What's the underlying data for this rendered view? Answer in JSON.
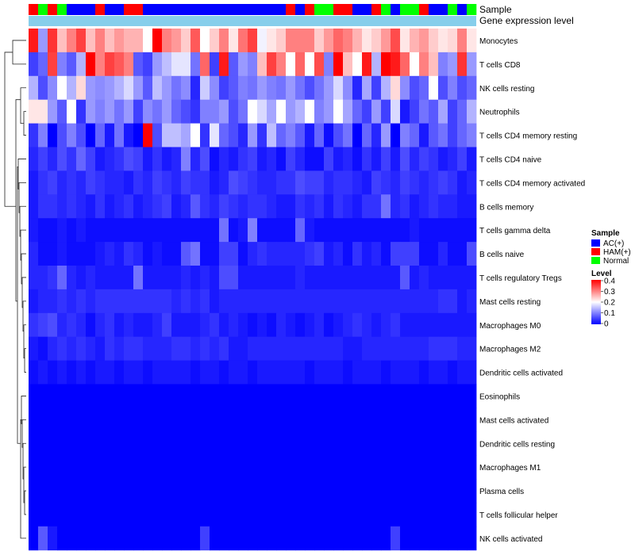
{
  "chart_data": {
    "type": "heatmap",
    "annotation_labels": [
      "Sample",
      "Gene expression level"
    ],
    "sample_annotation": [
      "HAM(+)",
      "Normal",
      "HAM(+)",
      "Normal",
      "AC(+)",
      "AC(+)",
      "AC(+)",
      "HAM(+)",
      "AC(+)",
      "AC(+)",
      "HAM(+)",
      "HAM(+)",
      "AC(+)",
      "AC(+)",
      "AC(+)",
      "AC(+)",
      "AC(+)",
      "AC(+)",
      "AC(+)",
      "AC(+)",
      "AC(+)",
      "AC(+)",
      "AC(+)",
      "AC(+)",
      "AC(+)",
      "AC(+)",
      "AC(+)",
      "HAM(+)",
      "AC(+)",
      "HAM(+)",
      "Normal",
      "Normal",
      "HAM(+)",
      "HAM(+)",
      "AC(+)",
      "AC(+)",
      "HAM(+)",
      "Normal",
      "AC(+)",
      "Normal",
      "Normal",
      "HAM(+)",
      "AC(+)",
      "AC(+)",
      "Normal",
      "AC(+)",
      "Normal"
    ],
    "rows": [
      "Monocytes",
      "T cells CD8",
      "NK cells resting",
      "Neutrophils",
      "T cells CD4 memory resting",
      "T cells CD4 naive",
      "T cells CD4 memory activated",
      "B cells memory",
      "T cells gamma delta",
      "B cells naive",
      "T cells regulatory  Tregs",
      "Mast cells resting",
      "Macrophages M0",
      "Macrophages M2",
      "Dendritic cells activated",
      "Eosinophils",
      "Mast cells activated",
      "Dendritic cells resting",
      "Macrophages M1",
      "Plasma cells",
      "T cells follicular helper",
      "NK cells activated"
    ],
    "values": [
      [
        0.38,
        0.12,
        0.36,
        0.25,
        0.3,
        0.35,
        0.25,
        0.3,
        0.25,
        0.28,
        0.26,
        0.26,
        0.2,
        0.4,
        0.3,
        0.28,
        0.24,
        0.33,
        0.2,
        0.24,
        0.3,
        0.22,
        0.31,
        0.35,
        0.19,
        0.22,
        0.24,
        0.3,
        0.3,
        0.3,
        0.24,
        0.28,
        0.32,
        0.3,
        0.26,
        0.22,
        0.24,
        0.28,
        0.34,
        0.22,
        0.26,
        0.28,
        0.24,
        0.22,
        0.23,
        0.3,
        0.22
      ],
      [
        0.05,
        0.08,
        0.35,
        0.1,
        0.07,
        0.14,
        0.4,
        0.3,
        0.35,
        0.33,
        0.3,
        0.07,
        0.05,
        0.12,
        0.15,
        0.18,
        0.18,
        0.09,
        0.32,
        0.05,
        0.38,
        0.07,
        0.12,
        0.1,
        0.25,
        0.35,
        0.3,
        0.2,
        0.32,
        0.2,
        0.34,
        0.1,
        0.4,
        0.25,
        0.2,
        0.38,
        0.14,
        0.4,
        0.38,
        0.32,
        0.2,
        0.3,
        0.25,
        0.1,
        0.12,
        0.36,
        0.12
      ],
      [
        0.14,
        0.06,
        0.11,
        0.2,
        0.14,
        0.23,
        0.12,
        0.11,
        0.12,
        0.14,
        0.17,
        0.12,
        0.07,
        0.15,
        0.12,
        0.09,
        0.11,
        0.03,
        0.16,
        0.11,
        0.05,
        0.07,
        0.1,
        0.09,
        0.12,
        0.1,
        0.09,
        0.12,
        0.09,
        0.06,
        0.09,
        0.12,
        0.17,
        0.11,
        0.03,
        0.13,
        0.05,
        0.14,
        0.23,
        0.11,
        0.06,
        0.08,
        0.2,
        0.06,
        0.1,
        0.06,
        0.08
      ],
      [
        0.22,
        0.22,
        0.12,
        0.07,
        0.2,
        0.04,
        0.12,
        0.1,
        0.12,
        0.09,
        0.12,
        0.05,
        0.11,
        0.09,
        0.12,
        0.08,
        0.06,
        0.04,
        0.1,
        0.1,
        0.12,
        0.06,
        0.09,
        0.2,
        0.17,
        0.13,
        0.2,
        0.12,
        0.14,
        0.2,
        0.1,
        0.12,
        0.2,
        0.13,
        0.08,
        0.05,
        0.12,
        0.05,
        0.17,
        0.02,
        0.05,
        0.09,
        0.07,
        0.13,
        0.05,
        0.08,
        0.14
      ],
      [
        0.04,
        0.1,
        0.0,
        0.06,
        0.1,
        0.06,
        0.0,
        0.08,
        0.02,
        0.09,
        0.02,
        0.0,
        0.4,
        0.06,
        0.15,
        0.15,
        0.13,
        0.2,
        0.04,
        0.18,
        0.08,
        0.06,
        0.03,
        0.12,
        0.04,
        0.15,
        0.08,
        0.1,
        0.07,
        0.02,
        0.08,
        0.01,
        0.06,
        0.09,
        0.0,
        0.08,
        0.03,
        0.12,
        0.0,
        0.1,
        0.08,
        0.02,
        0.07,
        0.09,
        0.05,
        0.08,
        0.1
      ],
      [
        0.03,
        0.05,
        0.03,
        0.06,
        0.04,
        0.08,
        0.05,
        0.02,
        0.03,
        0.04,
        0.06,
        0.05,
        0.02,
        0.04,
        0.02,
        0.03,
        0.1,
        0.03,
        0.06,
        0.01,
        0.03,
        0.02,
        0.04,
        0.05,
        0.02,
        0.03,
        0.01,
        0.05,
        0.03,
        0.01,
        0.01,
        0.05,
        0.02,
        0.03,
        0.01,
        0.04,
        0.02,
        0.05,
        0.02,
        0.06,
        0.03,
        0.05,
        0.04,
        0.02,
        0.03,
        0.05,
        0.02
      ],
      [
        0.02,
        0.04,
        0.05,
        0.03,
        0.04,
        0.03,
        0.05,
        0.04,
        0.03,
        0.03,
        0.02,
        0.04,
        0.03,
        0.05,
        0.04,
        0.03,
        0.05,
        0.04,
        0.04,
        0.02,
        0.03,
        0.06,
        0.05,
        0.04,
        0.03,
        0.03,
        0.04,
        0.04,
        0.06,
        0.05,
        0.05,
        0.03,
        0.04,
        0.04,
        0.03,
        0.02,
        0.05,
        0.04,
        0.03,
        0.05,
        0.04,
        0.03,
        0.04,
        0.05,
        0.04,
        0.02,
        0.03
      ],
      [
        0.02,
        0.04,
        0.04,
        0.03,
        0.04,
        0.03,
        0.02,
        0.04,
        0.02,
        0.03,
        0.04,
        0.02,
        0.03,
        0.04,
        0.05,
        0.02,
        0.03,
        0.07,
        0.04,
        0.03,
        0.05,
        0.04,
        0.03,
        0.04,
        0.04,
        0.03,
        0.02,
        0.02,
        0.04,
        0.03,
        0.04,
        0.02,
        0.04,
        0.03,
        0.02,
        0.04,
        0.04,
        0.09,
        0.03,
        0.04,
        0.02,
        0.03,
        0.04,
        0.03,
        0.03,
        0.02,
        0.02
      ],
      [
        0.02,
        0.01,
        0.01,
        0.02,
        0.01,
        0.02,
        0.01,
        0.01,
        0.01,
        0.01,
        0.01,
        0.01,
        0.01,
        0.01,
        0.01,
        0.01,
        0.01,
        0.01,
        0.01,
        0.01,
        0.09,
        0.01,
        0.02,
        0.1,
        0.01,
        0.01,
        0.01,
        0.01,
        0.08,
        0.02,
        0.01,
        0.01,
        0.01,
        0.01,
        0.01,
        0.01,
        0.01,
        0.01,
        0.01,
        0.01,
        0.02,
        0.01,
        0.01,
        0.01,
        0.01,
        0.01,
        0.01
      ],
      [
        0.03,
        0.01,
        0.01,
        0.02,
        0.01,
        0.01,
        0.01,
        0.02,
        0.03,
        0.02,
        0.04,
        0.03,
        0.01,
        0.02,
        0.01,
        0.01,
        0.07,
        0.09,
        0.01,
        0.01,
        0.05,
        0.05,
        0.01,
        0.03,
        0.04,
        0.03,
        0.03,
        0.03,
        0.03,
        0.04,
        0.05,
        0.02,
        0.03,
        0.01,
        0.04,
        0.02,
        0.03,
        0.01,
        0.05,
        0.05,
        0.05,
        0.01,
        0.01,
        0.03,
        0.01,
        0.01,
        0.06
      ],
      [
        0.03,
        0.03,
        0.04,
        0.08,
        0.03,
        0.02,
        0.03,
        0.02,
        0.02,
        0.02,
        0.02,
        0.09,
        0.02,
        0.02,
        0.02,
        0.02,
        0.03,
        0.02,
        0.03,
        0.02,
        0.06,
        0.06,
        0.02,
        0.02,
        0.02,
        0.02,
        0.02,
        0.02,
        0.03,
        0.02,
        0.02,
        0.02,
        0.02,
        0.02,
        0.02,
        0.02,
        0.02,
        0.02,
        0.02,
        0.07,
        0.02,
        0.03,
        0.02,
        0.02,
        0.02,
        0.02,
        0.02
      ],
      [
        0.02,
        0.03,
        0.03,
        0.04,
        0.03,
        0.04,
        0.03,
        0.04,
        0.04,
        0.04,
        0.04,
        0.04,
        0.04,
        0.04,
        0.04,
        0.03,
        0.04,
        0.03,
        0.04,
        0.02,
        0.03,
        0.03,
        0.03,
        0.03,
        0.03,
        0.03,
        0.03,
        0.03,
        0.03,
        0.03,
        0.03,
        0.03,
        0.03,
        0.03,
        0.03,
        0.03,
        0.03,
        0.03,
        0.03,
        0.03,
        0.03,
        0.03,
        0.03,
        0.04,
        0.04,
        0.02,
        0.03
      ],
      [
        0.04,
        0.05,
        0.06,
        0.03,
        0.04,
        0.03,
        0.01,
        0.03,
        0.04,
        0.02,
        0.03,
        0.02,
        0.02,
        0.03,
        0.05,
        0.02,
        0.02,
        0.02,
        0.03,
        0.04,
        0.02,
        0.03,
        0.02,
        0.01,
        0.02,
        0.01,
        0.03,
        0.02,
        0.01,
        0.02,
        0.03,
        0.01,
        0.02,
        0.03,
        0.04,
        0.03,
        0.02,
        0.03,
        0.04,
        0.02,
        0.02,
        0.02,
        0.02,
        0.02,
        0.02,
        0.02,
        0.02
      ],
      [
        0.02,
        0.01,
        0.03,
        0.04,
        0.03,
        0.04,
        0.03,
        0.02,
        0.04,
        0.03,
        0.04,
        0.04,
        0.03,
        0.03,
        0.03,
        0.04,
        0.04,
        0.03,
        0.04,
        0.03,
        0.04,
        0.02,
        0.02,
        0.03,
        0.03,
        0.03,
        0.03,
        0.03,
        0.03,
        0.03,
        0.03,
        0.03,
        0.03,
        0.02,
        0.02,
        0.03,
        0.03,
        0.03,
        0.03,
        0.03,
        0.03,
        0.03,
        0.04,
        0.04,
        0.04,
        0.03,
        0.03
      ],
      [
        0.01,
        0.02,
        0.01,
        0.02,
        0.01,
        0.02,
        0.01,
        0.02,
        0.02,
        0.01,
        0.02,
        0.02,
        0.01,
        0.02,
        0.02,
        0.02,
        0.02,
        0.01,
        0.02,
        0.02,
        0.01,
        0.02,
        0.02,
        0.01,
        0.02,
        0.02,
        0.02,
        0.02,
        0.02,
        0.01,
        0.02,
        0.02,
        0.02,
        0.01,
        0.02,
        0.02,
        0.02,
        0.01,
        0.02,
        0.02,
        0.02,
        0.01,
        0.02,
        0.02,
        0.01,
        0.02,
        0.02
      ],
      [
        0.0,
        0.0,
        0.0,
        0.0,
        0.0,
        0.0,
        0.0,
        0.0,
        0.0,
        0.0,
        0.0,
        0.0,
        0.0,
        0.0,
        0.0,
        0.0,
        0.0,
        0.0,
        0.0,
        0.0,
        0.0,
        0.0,
        0.0,
        0.0,
        0.0,
        0.0,
        0.0,
        0.0,
        0.0,
        0.0,
        0.0,
        0.0,
        0.0,
        0.0,
        0.0,
        0.0,
        0.0,
        0.0,
        0.0,
        0.0,
        0.0,
        0.0,
        0.0,
        0.0,
        0.0,
        0.0,
        0.0
      ],
      [
        0.0,
        0.0,
        0.0,
        0.0,
        0.0,
        0.0,
        0.0,
        0.0,
        0.0,
        0.0,
        0.0,
        0.0,
        0.0,
        0.0,
        0.0,
        0.0,
        0.0,
        0.0,
        0.0,
        0.0,
        0.0,
        0.0,
        0.0,
        0.0,
        0.0,
        0.0,
        0.0,
        0.0,
        0.0,
        0.0,
        0.0,
        0.0,
        0.0,
        0.0,
        0.0,
        0.0,
        0.0,
        0.0,
        0.0,
        0.0,
        0.0,
        0.0,
        0.0,
        0.0,
        0.0,
        0.0,
        0.0
      ],
      [
        0.0,
        0.0,
        0.0,
        0.0,
        0.0,
        0.0,
        0.0,
        0.0,
        0.0,
        0.0,
        0.0,
        0.0,
        0.0,
        0.0,
        0.0,
        0.0,
        0.0,
        0.0,
        0.0,
        0.0,
        0.0,
        0.0,
        0.0,
        0.0,
        0.0,
        0.0,
        0.0,
        0.0,
        0.0,
        0.0,
        0.0,
        0.0,
        0.0,
        0.0,
        0.0,
        0.0,
        0.0,
        0.0,
        0.0,
        0.0,
        0.0,
        0.0,
        0.0,
        0.0,
        0.0,
        0.0,
        0.0
      ],
      [
        0.0,
        0.0,
        0.0,
        0.0,
        0.0,
        0.0,
        0.0,
        0.0,
        0.0,
        0.0,
        0.0,
        0.0,
        0.0,
        0.0,
        0.0,
        0.0,
        0.0,
        0.0,
        0.0,
        0.0,
        0.0,
        0.0,
        0.0,
        0.0,
        0.0,
        0.0,
        0.0,
        0.0,
        0.0,
        0.0,
        0.0,
        0.0,
        0.0,
        0.0,
        0.0,
        0.0,
        0.0,
        0.0,
        0.0,
        0.0,
        0.0,
        0.0,
        0.0,
        0.0,
        0.0,
        0.0,
        0.0
      ],
      [
        0.0,
        0.0,
        0.0,
        0.0,
        0.0,
        0.0,
        0.0,
        0.0,
        0.0,
        0.0,
        0.0,
        0.0,
        0.0,
        0.0,
        0.0,
        0.0,
        0.0,
        0.0,
        0.0,
        0.0,
        0.0,
        0.0,
        0.0,
        0.0,
        0.0,
        0.0,
        0.0,
        0.0,
        0.0,
        0.0,
        0.0,
        0.0,
        0.0,
        0.0,
        0.0,
        0.0,
        0.0,
        0.0,
        0.0,
        0.0,
        0.0,
        0.0,
        0.0,
        0.0,
        0.0,
        0.0,
        0.0
      ],
      [
        0.0,
        0.0,
        0.0,
        0.0,
        0.0,
        0.0,
        0.0,
        0.0,
        0.0,
        0.0,
        0.0,
        0.0,
        0.0,
        0.0,
        0.0,
        0.0,
        0.0,
        0.0,
        0.0,
        0.0,
        0.0,
        0.0,
        0.0,
        0.0,
        0.0,
        0.0,
        0.0,
        0.0,
        0.0,
        0.0,
        0.0,
        0.0,
        0.0,
        0.0,
        0.0,
        0.0,
        0.0,
        0.0,
        0.0,
        0.0,
        0.0,
        0.0,
        0.0,
        0.0,
        0.0,
        0.0,
        0.0
      ],
      [
        0.0,
        0.07,
        0.02,
        0.0,
        0.0,
        0.0,
        0.0,
        0.0,
        0.0,
        0.0,
        0.0,
        0.0,
        0.0,
        0.0,
        0.0,
        0.0,
        0.0,
        0.0,
        0.05,
        0.0,
        0.0,
        0.0,
        0.0,
        0.0,
        0.0,
        0.0,
        0.0,
        0.0,
        0.0,
        0.0,
        0.0,
        0.0,
        0.0,
        0.0,
        0.0,
        0.0,
        0.0,
        0.0,
        0.05,
        0.0,
        0.0,
        0.0,
        0.0,
        0.0,
        0.0,
        0.0,
        0.0
      ]
    ],
    "color_scale": {
      "min": 0,
      "mid": 0.2,
      "max": 0.4,
      "low": "#0000ff",
      "midColor": "#ffffff",
      "high": "#ff0000"
    },
    "legend": {
      "sample_title": "Sample",
      "sample_items": [
        {
          "label": "AC(+)",
          "color": "#0000ff"
        },
        {
          "label": "HAM(+)",
          "color": "#ff0000"
        },
        {
          "label": "Normal",
          "color": "#00ff00"
        }
      ],
      "level_title": "Level",
      "level_ticks": [
        "0.4",
        "0.3",
        "0.2",
        "0.1",
        "0"
      ]
    },
    "gene_expression_color": "#87ceeb"
  }
}
